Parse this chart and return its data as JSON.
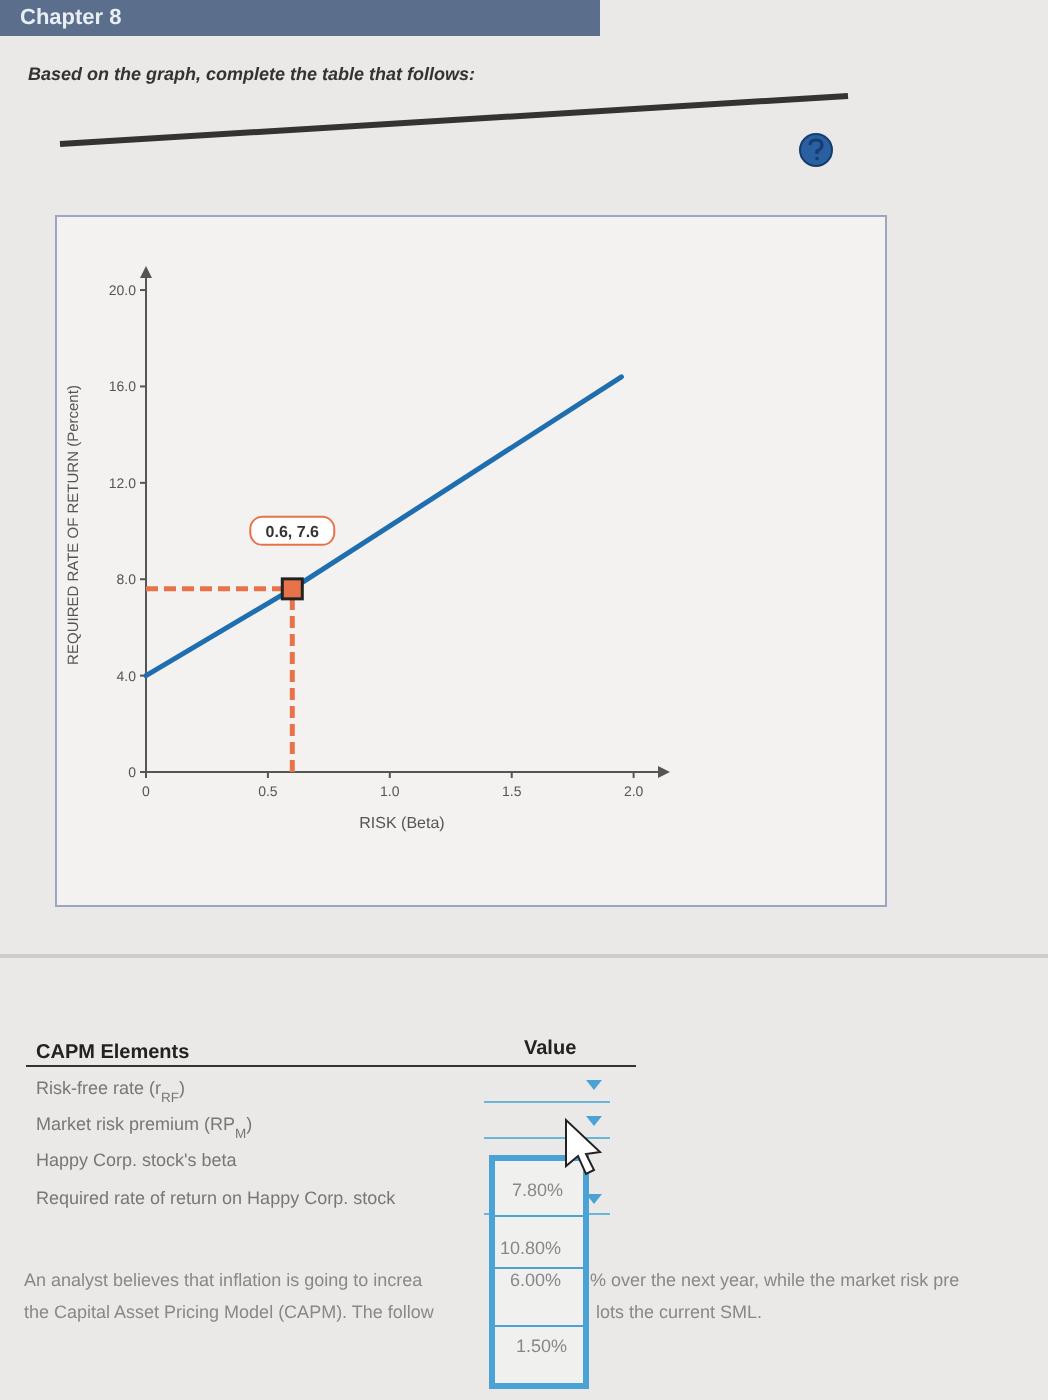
{
  "chart_data": {
    "type": "line",
    "title": "Based on the graph, complete the table that follows:",
    "xlabel": "RISK (Beta)",
    "ylabel": "REQUIRED RATE OF RETURN (Percent)",
    "xlim": [
      0,
      2.1
    ],
    "xticks": [
      0,
      {
        "value": 0.5,
        "label": "0.5"
      },
      {
        "value": 1,
        "label": "1.0"
      },
      {
        "value": 1.5,
        "label": "1.5"
      },
      {
        "value": 2,
        "label": "2.0"
      }
    ],
    "ylim": [
      0,
      20.5
    ],
    "yticks": [
      0,
      {
        "value": 4,
        "label": "4.0"
      },
      {
        "value": 8,
        "label": "8.0"
      },
      {
        "value": 12,
        "label": "12.0"
      },
      {
        "value": 16,
        "label": "16.0"
      },
      {
        "value": 20,
        "label": "20.0"
      }
    ],
    "series": [
      {
        "color": "#1f6fb0",
        "x": [
          0,
          0.6,
          1.95
        ],
        "values": [
          4,
          7.6,
          16.4
        ]
      },
      {
        "type": "scatter",
        "color": "#e8734a",
        "marker": "square",
        "x": [
          0.6
        ],
        "values": [
          7.6
        ]
      }
    ],
    "ref_lines": [
      {
        "axis": "x",
        "value": 0.6,
        "color": "#e8734a",
        "line_style": "dashed"
      },
      {
        "axis": "y",
        "value": 7.6,
        "color": "#e8734a",
        "line_style": "dashed"
      }
    ],
    "annotations": [
      {
        "text": "0.6, 7.6",
        "x": 0.6,
        "y": 7.6
      },
      "Chapter 8",
      "CAPM Elements",
      "Value",
      "Risk-free rate (r$_{RF}$)",
      "Market risk premium (RP$_{M}$)",
      "Happy Corp. stock's beta",
      "Required rate of return on Happy Corp. stock",
      "7.80%",
      "10.80%",
      "6.00%",
      "1.50%",
      "An analyst believes that inflation is going to increa",
      "% over the next year, while the market risk pre",
      "the Capital Asset Pricing Model (CAPM). The follow",
      "lots the current SML."
    ],
    "grid": false
  }
}
